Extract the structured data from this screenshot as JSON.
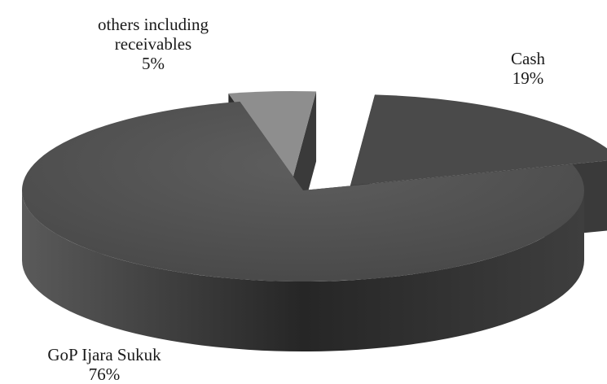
{
  "chart_data": {
    "type": "pie",
    "style": "3d-exploded",
    "title": "",
    "slices": [
      {
        "key": "cash",
        "name": "Cash",
        "value": 19,
        "value_label": "19%",
        "color": "#4a4a4a"
      },
      {
        "key": "gop",
        "name": "GoP Ijara Sukuk",
        "value": 76,
        "value_label": "76%",
        "color": "#525252"
      },
      {
        "key": "others",
        "name_lines": [
          "others including",
          "receivables"
        ],
        "value": 5,
        "value_label": "5%",
        "color": "#8e8e8e"
      }
    ]
  }
}
